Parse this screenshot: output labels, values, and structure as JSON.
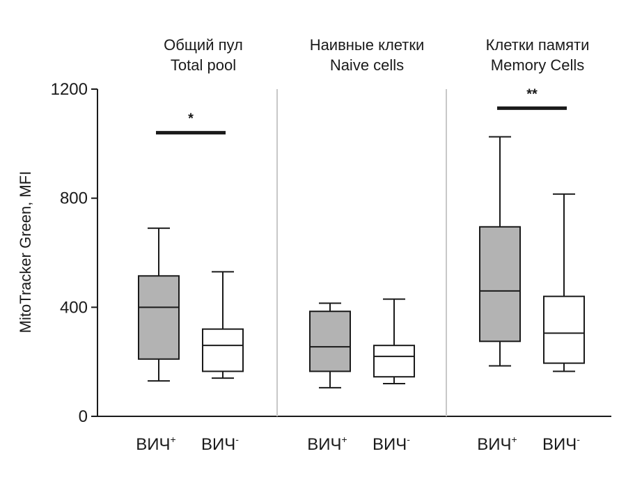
{
  "chart_data": {
    "type": "boxplot",
    "ylabel": "MitoTracker Green, MFI",
    "ylim": [
      0,
      1200
    ],
    "yticks": [
      0,
      400,
      800,
      1200
    ],
    "fill_colors": {
      "gray": "#b3b3b3",
      "white": "#ffffff"
    },
    "panels": [
      {
        "title_ru": "Общий пул",
        "title_en": "Total pool",
        "significance": "*",
        "significance_y": 1040,
        "groups": [
          {
            "label": "ВИЧ",
            "sup": "+",
            "fill": "gray",
            "whisker_low": 130,
            "q1": 210,
            "median": 400,
            "q3": 515,
            "whisker_high": 690
          },
          {
            "label": "ВИЧ",
            "sup": "-",
            "fill": "white",
            "whisker_low": 140,
            "q1": 165,
            "median": 260,
            "q3": 320,
            "whisker_high": 530
          }
        ]
      },
      {
        "title_ru": "Наивные клетки",
        "title_en": "Naive cells",
        "significance": "",
        "groups": [
          {
            "label": "ВИЧ",
            "sup": "+",
            "fill": "gray",
            "whisker_low": 105,
            "q1": 165,
            "median": 255,
            "q3": 385,
            "whisker_high": 415
          },
          {
            "label": "ВИЧ",
            "sup": "-",
            "fill": "white",
            "whisker_low": 120,
            "q1": 145,
            "median": 220,
            "q3": 260,
            "whisker_high": 430
          }
        ]
      },
      {
        "title_ru": "Клетки памяти",
        "title_en": "Memory Cells",
        "significance": "**",
        "significance_y": 1130,
        "groups": [
          {
            "label": "ВИЧ",
            "sup": "+",
            "fill": "gray",
            "whisker_low": 185,
            "q1": 275,
            "median": 460,
            "q3": 695,
            "whisker_high": 1025
          },
          {
            "label": "ВИЧ",
            "sup": "-",
            "fill": "white",
            "whisker_low": 165,
            "q1": 195,
            "median": 305,
            "q3": 440,
            "whisker_high": 815
          }
        ]
      }
    ]
  }
}
